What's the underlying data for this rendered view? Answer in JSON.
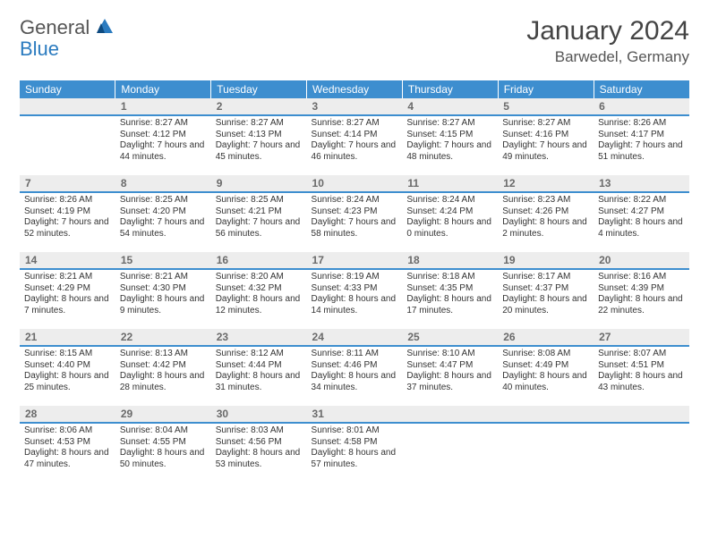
{
  "logo": {
    "general": "General",
    "blue": "Blue"
  },
  "title": "January 2024",
  "location": "Barwedel, Germany",
  "weekdays": [
    "Sunday",
    "Monday",
    "Tuesday",
    "Wednesday",
    "Thursday",
    "Friday",
    "Saturday"
  ],
  "colors": {
    "header_bg": "#3d8ecf",
    "header_text": "#ffffff",
    "daynum_bg": "#ededed",
    "daynum_border": "#3d8ecf",
    "daynum_text": "#6a6a6a",
    "body_text": "#333333",
    "logo_gray": "#555555",
    "logo_blue": "#2b7bbf"
  },
  "layout": {
    "cols": 7,
    "rows": 6,
    "first_weekday_index": 1
  },
  "days": [
    {
      "n": 1,
      "sunrise": "8:27 AM",
      "sunset": "4:12 PM",
      "daylight": "7 hours and 44 minutes."
    },
    {
      "n": 2,
      "sunrise": "8:27 AM",
      "sunset": "4:13 PM",
      "daylight": "7 hours and 45 minutes."
    },
    {
      "n": 3,
      "sunrise": "8:27 AM",
      "sunset": "4:14 PM",
      "daylight": "7 hours and 46 minutes."
    },
    {
      "n": 4,
      "sunrise": "8:27 AM",
      "sunset": "4:15 PM",
      "daylight": "7 hours and 48 minutes."
    },
    {
      "n": 5,
      "sunrise": "8:27 AM",
      "sunset": "4:16 PM",
      "daylight": "7 hours and 49 minutes."
    },
    {
      "n": 6,
      "sunrise": "8:26 AM",
      "sunset": "4:17 PM",
      "daylight": "7 hours and 51 minutes."
    },
    {
      "n": 7,
      "sunrise": "8:26 AM",
      "sunset": "4:19 PM",
      "daylight": "7 hours and 52 minutes."
    },
    {
      "n": 8,
      "sunrise": "8:25 AM",
      "sunset": "4:20 PM",
      "daylight": "7 hours and 54 minutes."
    },
    {
      "n": 9,
      "sunrise": "8:25 AM",
      "sunset": "4:21 PM",
      "daylight": "7 hours and 56 minutes."
    },
    {
      "n": 10,
      "sunrise": "8:24 AM",
      "sunset": "4:23 PM",
      "daylight": "7 hours and 58 minutes."
    },
    {
      "n": 11,
      "sunrise": "8:24 AM",
      "sunset": "4:24 PM",
      "daylight": "8 hours and 0 minutes."
    },
    {
      "n": 12,
      "sunrise": "8:23 AM",
      "sunset": "4:26 PM",
      "daylight": "8 hours and 2 minutes."
    },
    {
      "n": 13,
      "sunrise": "8:22 AM",
      "sunset": "4:27 PM",
      "daylight": "8 hours and 4 minutes."
    },
    {
      "n": 14,
      "sunrise": "8:21 AM",
      "sunset": "4:29 PM",
      "daylight": "8 hours and 7 minutes."
    },
    {
      "n": 15,
      "sunrise": "8:21 AM",
      "sunset": "4:30 PM",
      "daylight": "8 hours and 9 minutes."
    },
    {
      "n": 16,
      "sunrise": "8:20 AM",
      "sunset": "4:32 PM",
      "daylight": "8 hours and 12 minutes."
    },
    {
      "n": 17,
      "sunrise": "8:19 AM",
      "sunset": "4:33 PM",
      "daylight": "8 hours and 14 minutes."
    },
    {
      "n": 18,
      "sunrise": "8:18 AM",
      "sunset": "4:35 PM",
      "daylight": "8 hours and 17 minutes."
    },
    {
      "n": 19,
      "sunrise": "8:17 AM",
      "sunset": "4:37 PM",
      "daylight": "8 hours and 20 minutes."
    },
    {
      "n": 20,
      "sunrise": "8:16 AM",
      "sunset": "4:39 PM",
      "daylight": "8 hours and 22 minutes."
    },
    {
      "n": 21,
      "sunrise": "8:15 AM",
      "sunset": "4:40 PM",
      "daylight": "8 hours and 25 minutes."
    },
    {
      "n": 22,
      "sunrise": "8:13 AM",
      "sunset": "4:42 PM",
      "daylight": "8 hours and 28 minutes."
    },
    {
      "n": 23,
      "sunrise": "8:12 AM",
      "sunset": "4:44 PM",
      "daylight": "8 hours and 31 minutes."
    },
    {
      "n": 24,
      "sunrise": "8:11 AM",
      "sunset": "4:46 PM",
      "daylight": "8 hours and 34 minutes."
    },
    {
      "n": 25,
      "sunrise": "8:10 AM",
      "sunset": "4:47 PM",
      "daylight": "8 hours and 37 minutes."
    },
    {
      "n": 26,
      "sunrise": "8:08 AM",
      "sunset": "4:49 PM",
      "daylight": "8 hours and 40 minutes."
    },
    {
      "n": 27,
      "sunrise": "8:07 AM",
      "sunset": "4:51 PM",
      "daylight": "8 hours and 43 minutes."
    },
    {
      "n": 28,
      "sunrise": "8:06 AM",
      "sunset": "4:53 PM",
      "daylight": "8 hours and 47 minutes."
    },
    {
      "n": 29,
      "sunrise": "8:04 AM",
      "sunset": "4:55 PM",
      "daylight": "8 hours and 50 minutes."
    },
    {
      "n": 30,
      "sunrise": "8:03 AM",
      "sunset": "4:56 PM",
      "daylight": "8 hours and 53 minutes."
    },
    {
      "n": 31,
      "sunrise": "8:01 AM",
      "sunset": "4:58 PM",
      "daylight": "8 hours and 57 minutes."
    }
  ],
  "labels": {
    "sunrise": "Sunrise:",
    "sunset": "Sunset:",
    "daylight": "Daylight:"
  }
}
